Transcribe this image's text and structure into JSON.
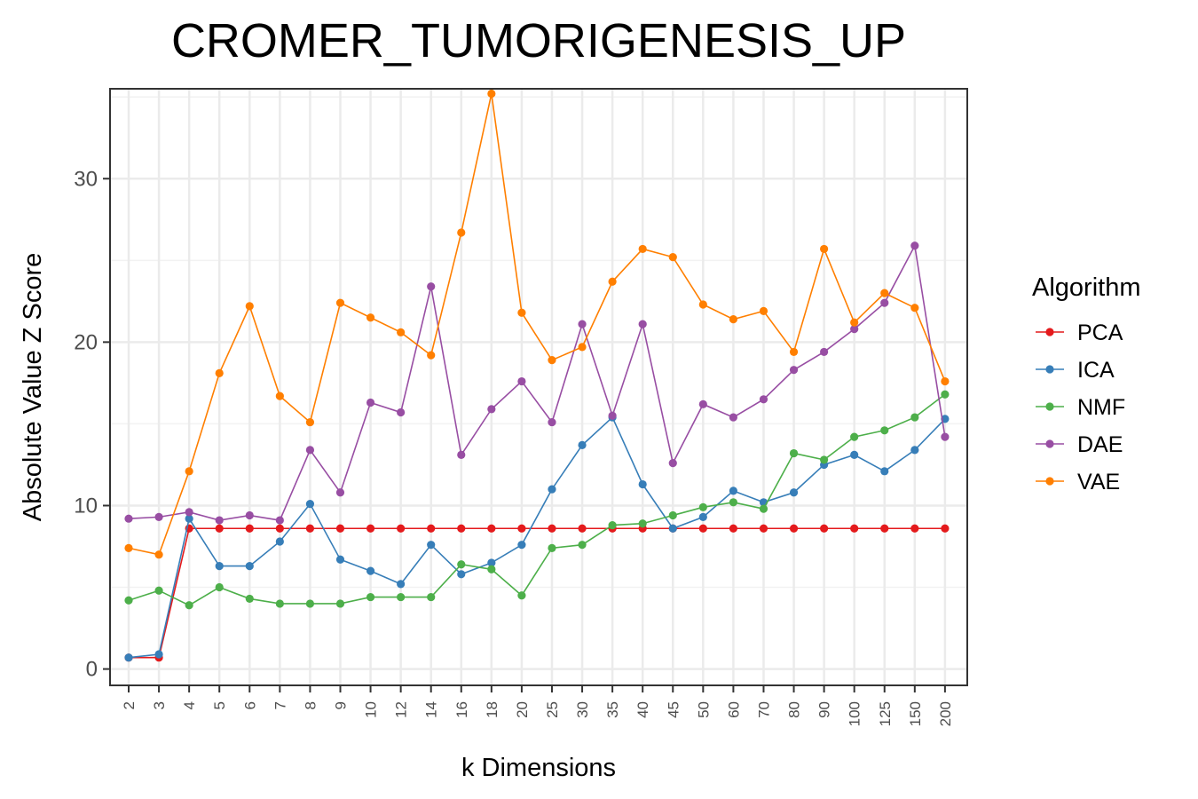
{
  "chart_data": {
    "type": "line",
    "title": "CROMER_TUMORIGENESIS_UP",
    "xlabel": "k Dimensions",
    "ylabel": "Absolute Value Z Score",
    "categories": [
      "2",
      "3",
      "4",
      "5",
      "6",
      "7",
      "8",
      "9",
      "10",
      "12",
      "14",
      "16",
      "18",
      "20",
      "25",
      "30",
      "35",
      "40",
      "45",
      "50",
      "60",
      "70",
      "80",
      "90",
      "100",
      "125",
      "150",
      "200"
    ],
    "ylim": [
      -1,
      35.5
    ],
    "yticks": [
      "0",
      "10",
      "20",
      "30"
    ],
    "grid": true,
    "legend": {
      "title": "Algorithm",
      "position": "right"
    },
    "series": [
      {
        "name": "PCA",
        "color": "#E41A1C",
        "values": [
          0.7,
          0.7,
          8.6,
          8.6,
          8.6,
          8.6,
          8.6,
          8.6,
          8.6,
          8.6,
          8.6,
          8.6,
          8.6,
          8.6,
          8.6,
          8.6,
          8.6,
          8.6,
          8.6,
          8.6,
          8.6,
          8.6,
          8.6,
          8.6,
          8.6,
          8.6,
          8.6,
          8.6
        ]
      },
      {
        "name": "ICA",
        "color": "#377EB8",
        "values": [
          0.7,
          0.9,
          9.2,
          6.3,
          6.3,
          7.8,
          10.1,
          6.7,
          6.0,
          5.2,
          7.6,
          5.8,
          6.5,
          7.6,
          11.0,
          13.7,
          15.4,
          11.3,
          8.6,
          9.3,
          10.9,
          10.2,
          10.8,
          12.5,
          13.1,
          12.1,
          13.4,
          15.3
        ]
      },
      {
        "name": "NMF",
        "color": "#4DAF4A",
        "values": [
          4.2,
          4.8,
          3.9,
          5.0,
          4.3,
          4.0,
          4.0,
          4.0,
          4.4,
          4.4,
          4.4,
          6.4,
          6.1,
          4.5,
          7.4,
          7.6,
          8.8,
          8.9,
          9.4,
          9.9,
          10.2,
          9.8,
          13.2,
          12.8,
          14.2,
          14.6,
          15.4,
          16.8
        ]
      },
      {
        "name": "DAE",
        "color": "#984EA3",
        "values": [
          9.2,
          9.3,
          9.6,
          9.1,
          9.4,
          9.1,
          13.4,
          10.8,
          16.3,
          15.7,
          23.4,
          13.1,
          15.9,
          17.6,
          15.1,
          21.1,
          15.5,
          21.1,
          12.6,
          16.2,
          15.4,
          16.5,
          18.3,
          19.4,
          20.8,
          22.4,
          25.9,
          14.2
        ]
      },
      {
        "name": "VAE",
        "color": "#FF7F00",
        "values": [
          7.4,
          7.0,
          12.1,
          18.1,
          22.2,
          16.7,
          15.1,
          22.4,
          21.5,
          20.6,
          19.2,
          26.7,
          35.2,
          21.8,
          18.9,
          19.7,
          23.7,
          25.7,
          25.2,
          22.3,
          21.4,
          21.9,
          19.4,
          25.7,
          21.2,
          23.0,
          22.1,
          17.6
        ]
      }
    ]
  }
}
